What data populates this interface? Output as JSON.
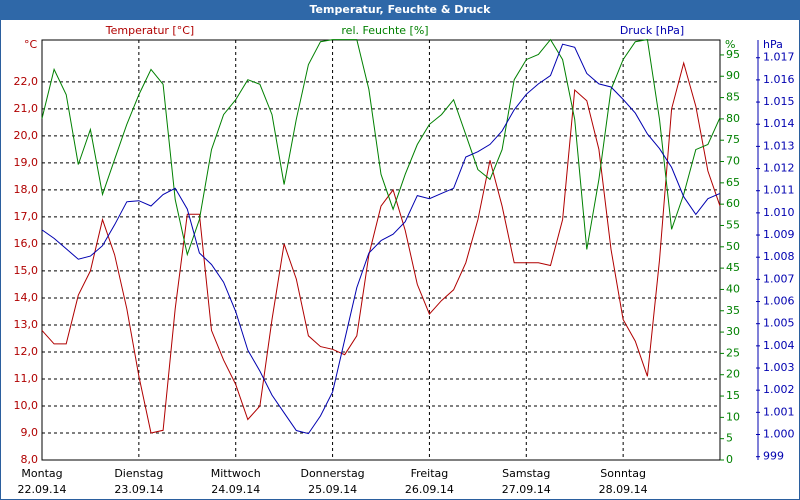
{
  "chart_data": {
    "type": "line",
    "title": "Temperatur, Feuchte & Druck",
    "x": [
      0,
      3,
      6,
      9,
      12,
      15,
      18,
      21,
      24,
      27,
      30,
      33,
      36,
      39,
      42,
      45,
      48,
      51,
      54,
      57,
      60,
      63,
      66,
      69,
      72,
      75,
      78,
      81,
      84,
      87,
      90,
      93,
      96,
      99,
      102,
      105,
      108,
      111,
      114,
      117,
      120,
      123,
      126,
      129,
      132,
      135,
      138,
      141,
      144,
      147,
      150,
      153,
      156,
      159,
      162,
      165,
      168
    ],
    "xlim": [
      0,
      168
    ],
    "xticks": [
      {
        "value": 0,
        "label": "Montag"
      },
      {
        "value": 24,
        "label": "Dienstag"
      },
      {
        "value": 48,
        "label": "Mittwoch"
      },
      {
        "value": 72,
        "label": "Donnerstag"
      },
      {
        "value": 96,
        "label": "Freitag"
      },
      {
        "value": 120,
        "label": "Samstag"
      },
      {
        "value": 144,
        "label": "Sonntag"
      }
    ],
    "xtick_dates": [
      "22.09.14",
      "23.09.14",
      "24.09.14",
      "25.09.14",
      "26.09.14",
      "27.09.14",
      "28.09.14"
    ],
    "grid": true,
    "ylabel": "Temperatur [°C]",
    "yunit": "°C",
    "ylim": [
      8,
      23.55
    ],
    "yticks": [
      {
        "value": 8,
        "label": "8,0"
      },
      {
        "value": 9,
        "label": "9,0"
      },
      {
        "value": 10,
        "label": "10,0"
      },
      {
        "value": 11,
        "label": "11,0"
      },
      {
        "value": 12,
        "label": "12,0"
      },
      {
        "value": 13,
        "label": "13,0"
      },
      {
        "value": 14,
        "label": "14,0"
      },
      {
        "value": 15,
        "label": "15,0"
      },
      {
        "value": 16,
        "label": "16,0"
      },
      {
        "value": 17,
        "label": "17,0"
      },
      {
        "value": 18,
        "label": "18,0"
      },
      {
        "value": 19,
        "label": "19,0"
      },
      {
        "value": 20,
        "label": "20,0"
      },
      {
        "value": 21,
        "label": "21,0"
      },
      {
        "value": 22,
        "label": "22,0"
      }
    ],
    "y2label": "rel. Feuchte [%]",
    "y2unit": "%",
    "y2lim": [
      0,
      98.5
    ],
    "y2ticks": [
      0,
      5,
      10,
      15,
      20,
      25,
      30,
      35,
      40,
      45,
      50,
      55,
      60,
      65,
      70,
      75,
      80,
      85,
      90,
      95
    ],
    "y3label": "Druck [hPa]",
    "y3unit": "hPa",
    "y3lim": [
      998.85,
      1017.8
    ],
    "y3ticks": [
      999,
      {
        "value": 1000,
        "label": "1.000"
      },
      {
        "value": 1001,
        "label": "1.001"
      },
      {
        "value": 1002,
        "label": "1.002"
      },
      {
        "value": 1003,
        "label": "1.003"
      },
      {
        "value": 1004,
        "label": "1.004"
      },
      {
        "value": 1005,
        "label": "1.005"
      },
      {
        "value": 1006,
        "label": "1.006"
      },
      {
        "value": 1007,
        "label": "1.007"
      },
      {
        "value": 1008,
        "label": "1.008"
      },
      {
        "value": 1009,
        "label": "1.009"
      },
      {
        "value": 1010,
        "label": "1.010"
      },
      {
        "value": 1011,
        "label": "1.011"
      },
      {
        "value": 1012,
        "label": "1.012"
      },
      {
        "value": 1013,
        "label": "1.013"
      },
      {
        "value": 1014,
        "label": "1.014"
      },
      {
        "value": 1015,
        "label": "1.015"
      },
      {
        "value": 1016,
        "label": "1.016"
      },
      {
        "value": 1017,
        "label": "1.017"
      }
    ],
    "series": [
      {
        "name": "Temperatur",
        "color": "#b00000",
        "axis": "y",
        "values": [
          12.8,
          12.3,
          12.3,
          14.1,
          15.0,
          16.9,
          15.6,
          13.6,
          11.1,
          9.0,
          9.1,
          13.6,
          17.1,
          17.1,
          12.8,
          11.7,
          10.8,
          9.5,
          10.0,
          13.2,
          16.0,
          14.7,
          12.6,
          12.2,
          12.1,
          11.9,
          12.6,
          15.6,
          17.4,
          18.0,
          16.5,
          14.5,
          13.4,
          13.9,
          14.3,
          15.3,
          16.9,
          19.1,
          17.4,
          15.3,
          15.3,
          15.3,
          15.2,
          16.9,
          21.7,
          21.3,
          19.5,
          15.8,
          13.2,
          12.4,
          11.1,
          15.4,
          21.0,
          22.7,
          21.1,
          18.7,
          17.4
        ]
      },
      {
        "name": "rel. Feuchte",
        "color": "#008000",
        "axis": "y2",
        "values": [
          80.1,
          91.6,
          85.7,
          69.3,
          77.5,
          62.3,
          70.5,
          78.7,
          85.7,
          91.6,
          88.1,
          61.1,
          48.2,
          56.4,
          72.8,
          81.0,
          84.5,
          89.2,
          88.1,
          81.0,
          64.6,
          79.9,
          92.7,
          98.1,
          98.6,
          98.6,
          98.6,
          86.9,
          67.0,
          58.8,
          67.0,
          74.0,
          78.7,
          81.0,
          84.5,
          76.3,
          68.1,
          65.8,
          72.8,
          89.2,
          93.9,
          95.1,
          98.6,
          93.9,
          79.9,
          49.4,
          65.8,
          86.9,
          93.9,
          98.1,
          98.6,
          79.9,
          54.1,
          62.3,
          72.8,
          74.0,
          80.3
        ]
      },
      {
        "name": "Druck",
        "color": "#0000b0",
        "axis": "y3",
        "values": [
          1009.23,
          1008.85,
          1008.38,
          1007.91,
          1008.05,
          1008.52,
          1009.46,
          1010.5,
          1010.55,
          1010.31,
          1010.83,
          1011.11,
          1010.17,
          1008.19,
          1007.67,
          1006.87,
          1005.55,
          1003.81,
          1002.86,
          1001.78,
          1000.98,
          1000.18,
          1000.04,
          1000.84,
          1001.92,
          1004.28,
          1006.63,
          1008.19,
          1008.75,
          1009.04,
          1009.6,
          1010.78,
          1010.64,
          1010.88,
          1011.11,
          1012.52,
          1012.76,
          1013.09,
          1013.7,
          1014.65,
          1015.35,
          1015.82,
          1016.2,
          1017.61,
          1017.47,
          1016.29,
          1015.82,
          1015.68,
          1015.12,
          1014.5,
          1013.56,
          1012.9,
          1012.05,
          1010.73,
          1009.93,
          1010.64,
          1010.88
        ]
      }
    ]
  }
}
